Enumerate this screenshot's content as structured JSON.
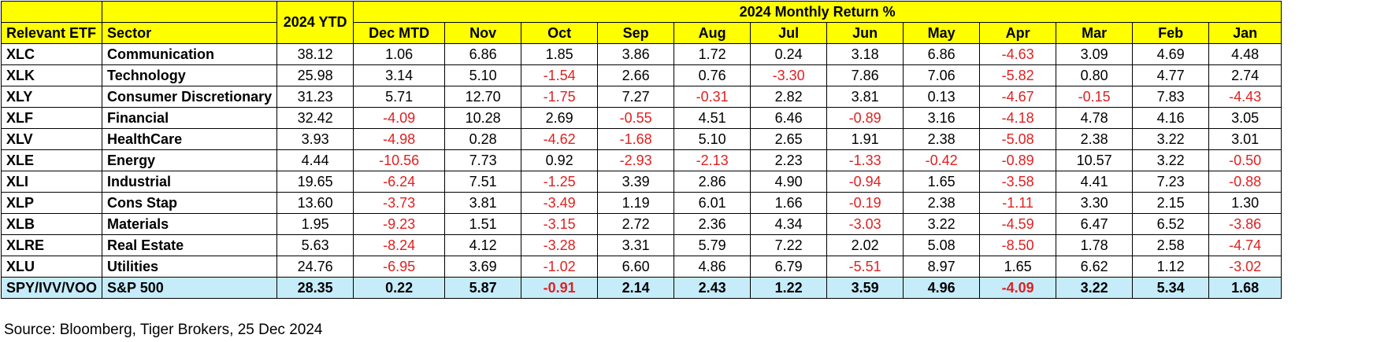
{
  "chart_data": {
    "type": "table",
    "title": "2024 Monthly Return %",
    "columns": [
      "Relevant ETF",
      "Sector",
      "2024 YTD",
      "Dec MTD",
      "Nov",
      "Oct",
      "Sep",
      "Aug",
      "Jul",
      "Jun",
      "May",
      "Apr",
      "Mar",
      "Feb",
      "Jan"
    ],
    "rows": [
      {
        "etf": "XLC",
        "sector": "Communication",
        "values": [
          "38.12",
          "1.06",
          "6.86",
          "1.85",
          "3.86",
          "1.72",
          "0.24",
          "3.18",
          "6.86",
          "-4.63",
          "3.09",
          "4.69",
          "4.48"
        ]
      },
      {
        "etf": "XLK",
        "sector": "Technology",
        "values": [
          "25.98",
          "3.14",
          "5.10",
          "-1.54",
          "2.66",
          "0.76",
          "-3.30",
          "7.86",
          "7.06",
          "-5.82",
          "0.80",
          "4.77",
          "2.74"
        ]
      },
      {
        "etf": "XLY",
        "sector": "Consumer Discretionary",
        "values": [
          "31.23",
          "5.71",
          "12.70",
          "-1.75",
          "7.27",
          "-0.31",
          "2.82",
          "3.81",
          "0.13",
          "-4.67",
          "-0.15",
          "7.83",
          "-4.43"
        ]
      },
      {
        "etf": "XLF",
        "sector": "Financial",
        "values": [
          "32.42",
          "-4.09",
          "10.28",
          "2.69",
          "-0.55",
          "4.51",
          "6.46",
          "-0.89",
          "3.16",
          "-4.18",
          "4.78",
          "4.16",
          "3.05"
        ]
      },
      {
        "etf": "XLV",
        "sector": "HealthCare",
        "values": [
          "3.93",
          "-4.98",
          "0.28",
          "-4.62",
          "-1.68",
          "5.10",
          "2.65",
          "1.91",
          "2.38",
          "-5.08",
          "2.38",
          "3.22",
          "3.01"
        ]
      },
      {
        "etf": "XLE",
        "sector": "Energy",
        "values": [
          "4.44",
          "-10.56",
          "7.73",
          "0.92",
          "-2.93",
          "-2.13",
          "2.23",
          "-1.33",
          "-0.42",
          "-0.89",
          "10.57",
          "3.22",
          "-0.50"
        ]
      },
      {
        "etf": "XLI",
        "sector": "Industrial",
        "values": [
          "19.65",
          "-6.24",
          "7.51",
          "-1.25",
          "3.39",
          "2.86",
          "4.90",
          "-0.94",
          "1.65",
          "-3.58",
          "4.41",
          "7.23",
          "-0.88"
        ]
      },
      {
        "etf": "XLP",
        "sector": "Cons Stap",
        "values": [
          "13.60",
          "-3.73",
          "3.81",
          "-3.49",
          "1.19",
          "6.01",
          "1.66",
          "-0.19",
          "2.38",
          "-1.11",
          "3.30",
          "2.15",
          "1.30"
        ]
      },
      {
        "etf": "XLB",
        "sector": "Materials",
        "values": [
          "1.95",
          "-9.23",
          "1.51",
          "-3.15",
          "2.72",
          "2.36",
          "4.34",
          "-3.03",
          "3.22",
          "-4.59",
          "6.47",
          "6.52",
          "-3.86"
        ]
      },
      {
        "etf": "XLRE",
        "sector": "Real Estate",
        "values": [
          "5.63",
          "-8.24",
          "4.12",
          "-3.28",
          "3.31",
          "5.79",
          "7.22",
          "2.02",
          "5.08",
          "-8.50",
          "1.78",
          "2.58",
          "-4.74"
        ]
      },
      {
        "etf": "XLU",
        "sector": "Utilities",
        "values": [
          "24.76",
          "-6.95",
          "3.69",
          "-1.02",
          "6.60",
          "4.86",
          "6.79",
          "-5.51",
          "8.97",
          "1.65",
          "6.62",
          "1.12",
          "-3.02"
        ]
      },
      {
        "etf": "SPY/IVV/VOO",
        "sector": "S&P 500",
        "values": [
          "28.35",
          "0.22",
          "5.87",
          "-0.91",
          "2.14",
          "2.43",
          "1.22",
          "3.59",
          "4.96",
          "-4.09",
          "3.22",
          "5.34",
          "1.68"
        ]
      }
    ],
    "colors": {
      "header_bg": "#ffff00",
      "total_row_bg": "#c6ecfa",
      "negative_text": "#e02020"
    }
  },
  "source": "Source: Bloomberg, Tiger Brokers, 25 Dec 2024"
}
